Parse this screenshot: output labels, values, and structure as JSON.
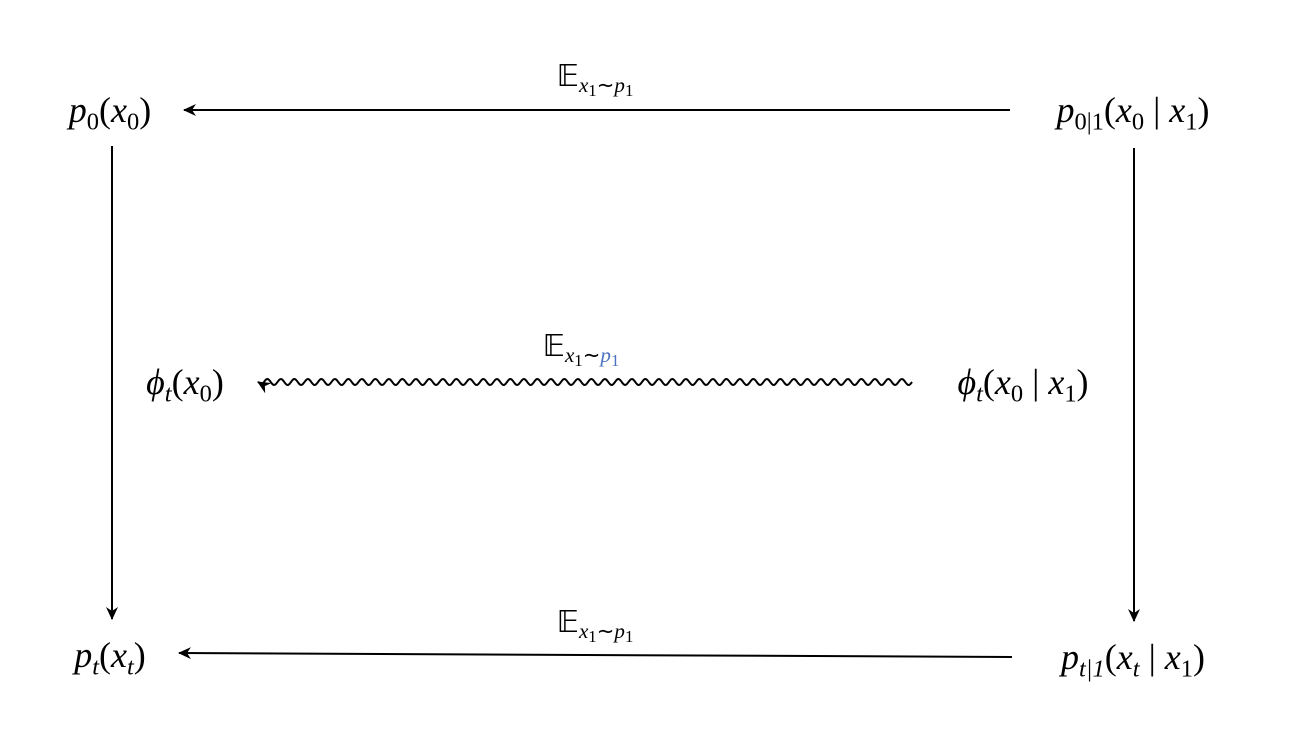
{
  "nodes": {
    "p0": {
      "func": "p",
      "func_sub": "0",
      "arg": "x",
      "arg_sub": "0"
    },
    "p0_given_1": {
      "func": "p",
      "func_sub": "0|1",
      "arg": "x",
      "arg_sub": "0",
      "cond": "x",
      "cond_sub": "1"
    },
    "phi_marginal": {
      "func": "ϕ",
      "func_sub": "t",
      "arg": "x",
      "arg_sub": "0"
    },
    "phi_conditional": {
      "func": "ϕ",
      "func_sub": "t",
      "arg": "x",
      "arg_sub": "0",
      "cond": "x",
      "cond_sub": "1"
    },
    "pt": {
      "func": "p",
      "func_sub": "t",
      "arg": "x",
      "arg_sub": "t"
    },
    "pt_given_1": {
      "func": "p",
      "func_sub": "t|1",
      "arg": "x",
      "arg_sub": "t",
      "cond": "x",
      "cond_sub": "1"
    }
  },
  "edges": {
    "top": {
      "op": "𝔼",
      "var": "x",
      "var_sub": "1",
      "tilde": "∼",
      "dist": "p",
      "dist_sub": "1"
    },
    "middle": {
      "op": "𝔼",
      "var": "x",
      "var_sub": "1",
      "tilde": "∼",
      "dist": "p",
      "dist_sub": "1",
      "dist_color": "#4a72c0",
      "style": "wavy"
    },
    "bottom": {
      "op": "𝔼",
      "var": "x",
      "var_sub": "1",
      "tilde": "∼",
      "dist": "p",
      "dist_sub": "1"
    }
  }
}
